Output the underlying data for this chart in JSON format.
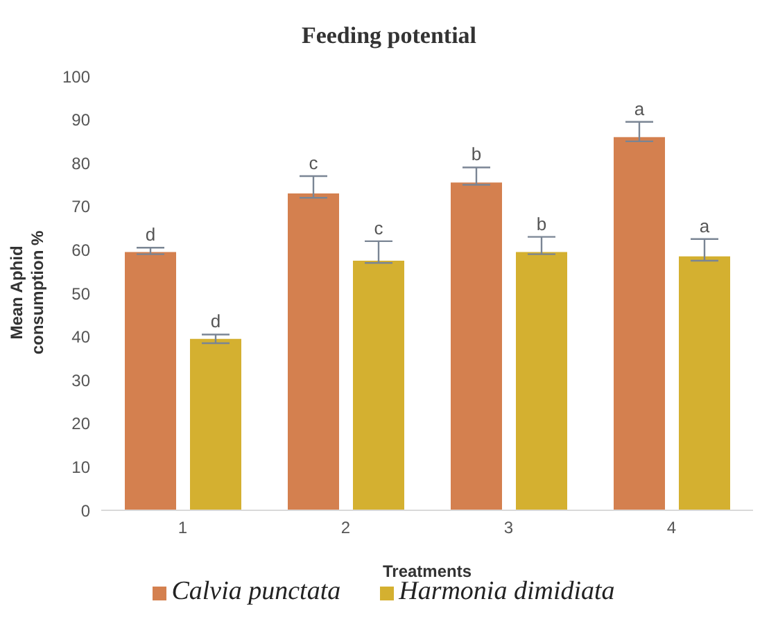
{
  "chart_data": {
    "type": "bar",
    "title": "Feeding potential",
    "xlabel": "Treatments",
    "ylabel": "Mean Aphid consumption %",
    "categories": [
      "1",
      "2",
      "3",
      "4"
    ],
    "series": [
      {
        "name": "Calvia punctata",
        "color": "#d4804f",
        "values": [
          59.5,
          73,
          75.5,
          86
        ],
        "errors": [
          [
            59,
            60.5
          ],
          [
            72,
            77
          ],
          [
            75,
            79
          ],
          [
            85,
            89.5
          ]
        ],
        "value_labels": [
          "d",
          "c",
          "b",
          "a"
        ]
      },
      {
        "name": "Harmonia dimidiata",
        "color": "#d4b030",
        "values": [
          39.5,
          57.5,
          59.5,
          58.5
        ],
        "errors": [
          [
            38.5,
            40.5
          ],
          [
            57,
            62
          ],
          [
            59,
            63
          ],
          [
            57.5,
            62.5
          ]
        ],
        "value_labels": [
          "d",
          "c",
          "b",
          "a"
        ]
      }
    ],
    "ylim": [
      0,
      100
    ],
    "yticks": [
      0,
      10,
      20,
      30,
      40,
      50,
      60,
      70,
      80,
      90,
      100
    ],
    "grid": false,
    "legend": "bottom"
  }
}
